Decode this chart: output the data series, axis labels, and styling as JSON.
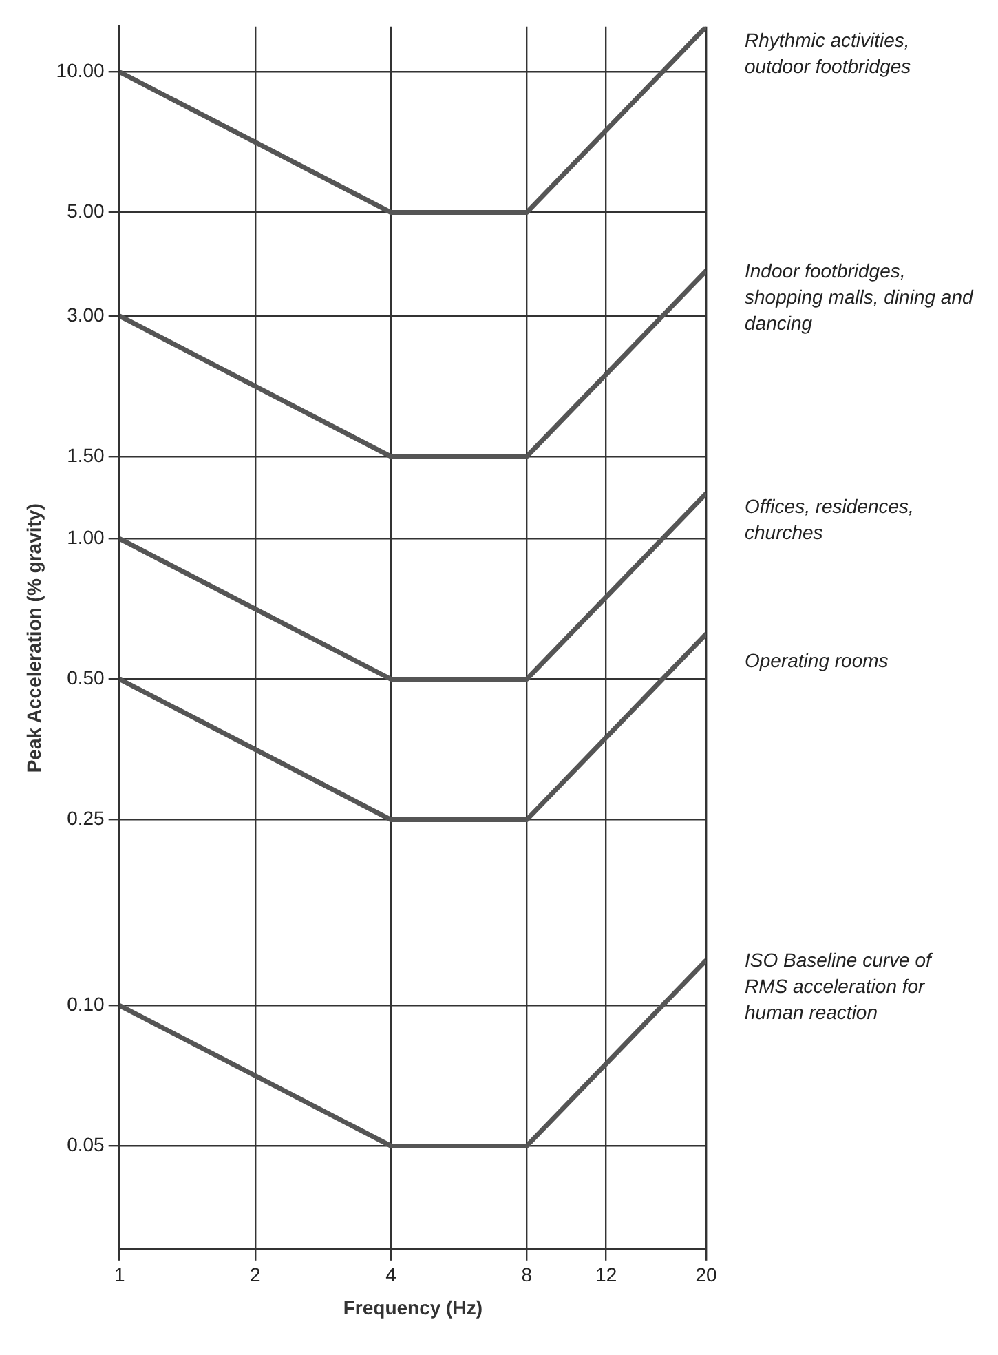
{
  "chart_data": {
    "type": "line",
    "xlabel": "Frequency (Hz)",
    "ylabel": "Peak Acceleration (% gravity)",
    "log": "xy",
    "grid": true,
    "legend": false,
    "marker": "none",
    "line_style": "solid",
    "x": [
      1,
      4,
      8,
      20
    ],
    "xlim": [
      1,
      20
    ],
    "xticks": [
      1,
      2,
      4,
      8,
      12,
      20
    ],
    "ylim": [
      0.03,
      12.5
    ],
    "yticks": [
      {
        "value": 0.05,
        "label": "0.05"
      },
      {
        "value": 0.1,
        "label": "0.10"
      },
      {
        "value": 0.25,
        "label": "0.25"
      },
      {
        "value": 0.5,
        "label": "0.50"
      },
      {
        "value": 1,
        "label": "1.00"
      },
      {
        "value": 1.5,
        "label": "1.50"
      },
      {
        "value": 3,
        "label": "3.00"
      },
      {
        "value": 5,
        "label": "5.00"
      },
      {
        "value": 10,
        "label": "10.00"
      }
    ],
    "series": [
      {
        "name": "Rhythmic activities, outdoor footbridges",
        "color": "#555555",
        "values": [
          10,
          5,
          5,
          12.5
        ]
      },
      {
        "name": "Indoor footbridges, shopping malls, dining and dancing",
        "color": "#555555",
        "values": [
          3,
          1.5,
          1.5,
          3.75
        ]
      },
      {
        "name": "Offices, residences, churches",
        "color": "#555555",
        "values": [
          1,
          0.5,
          0.5,
          1.25
        ]
      },
      {
        "name": "Operating rooms",
        "color": "#555555",
        "values": [
          0.5,
          0.25,
          0.25,
          0.625
        ]
      },
      {
        "name": "ISO Baseline curve of RMS acceleration for human reaction",
        "color": "#555555",
        "values": [
          0.1,
          0.05,
          0.05,
          0.125
        ]
      }
    ]
  }
}
